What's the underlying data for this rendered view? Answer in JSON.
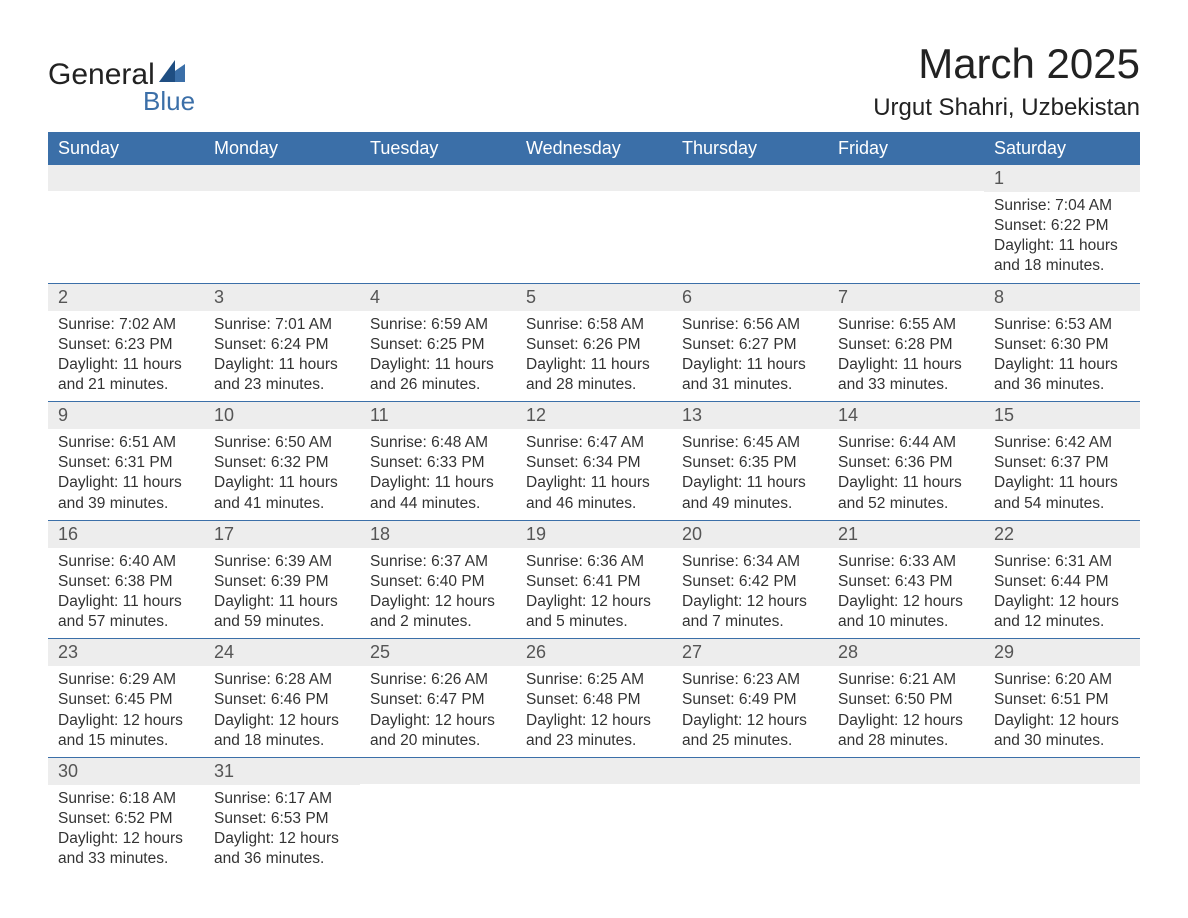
{
  "brand": {
    "name_part1": "General",
    "name_part2": "Blue",
    "accent_color": "#3b6fa8"
  },
  "title": "March 2025",
  "location": "Urgut Shahri, Uzbekistan",
  "weekdays": [
    "Sunday",
    "Monday",
    "Tuesday",
    "Wednesday",
    "Thursday",
    "Friday",
    "Saturday"
  ],
  "colors": {
    "header_bg": "#3b6fa8",
    "header_text": "#ffffff",
    "daynum_bg": "#ededed",
    "border": "#3b6fa8",
    "text": "#333333"
  },
  "weeks": [
    [
      null,
      null,
      null,
      null,
      null,
      null,
      {
        "n": "1",
        "sunrise": "Sunrise: 7:04 AM",
        "sunset": "Sunset: 6:22 PM",
        "day1": "Daylight: 11 hours",
        "day2": "and 18 minutes."
      }
    ],
    [
      {
        "n": "2",
        "sunrise": "Sunrise: 7:02 AM",
        "sunset": "Sunset: 6:23 PM",
        "day1": "Daylight: 11 hours",
        "day2": "and 21 minutes."
      },
      {
        "n": "3",
        "sunrise": "Sunrise: 7:01 AM",
        "sunset": "Sunset: 6:24 PM",
        "day1": "Daylight: 11 hours",
        "day2": "and 23 minutes."
      },
      {
        "n": "4",
        "sunrise": "Sunrise: 6:59 AM",
        "sunset": "Sunset: 6:25 PM",
        "day1": "Daylight: 11 hours",
        "day2": "and 26 minutes."
      },
      {
        "n": "5",
        "sunrise": "Sunrise: 6:58 AM",
        "sunset": "Sunset: 6:26 PM",
        "day1": "Daylight: 11 hours",
        "day2": "and 28 minutes."
      },
      {
        "n": "6",
        "sunrise": "Sunrise: 6:56 AM",
        "sunset": "Sunset: 6:27 PM",
        "day1": "Daylight: 11 hours",
        "day2": "and 31 minutes."
      },
      {
        "n": "7",
        "sunrise": "Sunrise: 6:55 AM",
        "sunset": "Sunset: 6:28 PM",
        "day1": "Daylight: 11 hours",
        "day2": "and 33 minutes."
      },
      {
        "n": "8",
        "sunrise": "Sunrise: 6:53 AM",
        "sunset": "Sunset: 6:30 PM",
        "day1": "Daylight: 11 hours",
        "day2": "and 36 minutes."
      }
    ],
    [
      {
        "n": "9",
        "sunrise": "Sunrise: 6:51 AM",
        "sunset": "Sunset: 6:31 PM",
        "day1": "Daylight: 11 hours",
        "day2": "and 39 minutes."
      },
      {
        "n": "10",
        "sunrise": "Sunrise: 6:50 AM",
        "sunset": "Sunset: 6:32 PM",
        "day1": "Daylight: 11 hours",
        "day2": "and 41 minutes."
      },
      {
        "n": "11",
        "sunrise": "Sunrise: 6:48 AM",
        "sunset": "Sunset: 6:33 PM",
        "day1": "Daylight: 11 hours",
        "day2": "and 44 minutes."
      },
      {
        "n": "12",
        "sunrise": "Sunrise: 6:47 AM",
        "sunset": "Sunset: 6:34 PM",
        "day1": "Daylight: 11 hours",
        "day2": "and 46 minutes."
      },
      {
        "n": "13",
        "sunrise": "Sunrise: 6:45 AM",
        "sunset": "Sunset: 6:35 PM",
        "day1": "Daylight: 11 hours",
        "day2": "and 49 minutes."
      },
      {
        "n": "14",
        "sunrise": "Sunrise: 6:44 AM",
        "sunset": "Sunset: 6:36 PM",
        "day1": "Daylight: 11 hours",
        "day2": "and 52 minutes."
      },
      {
        "n": "15",
        "sunrise": "Sunrise: 6:42 AM",
        "sunset": "Sunset: 6:37 PM",
        "day1": "Daylight: 11 hours",
        "day2": "and 54 minutes."
      }
    ],
    [
      {
        "n": "16",
        "sunrise": "Sunrise: 6:40 AM",
        "sunset": "Sunset: 6:38 PM",
        "day1": "Daylight: 11 hours",
        "day2": "and 57 minutes."
      },
      {
        "n": "17",
        "sunrise": "Sunrise: 6:39 AM",
        "sunset": "Sunset: 6:39 PM",
        "day1": "Daylight: 11 hours",
        "day2": "and 59 minutes."
      },
      {
        "n": "18",
        "sunrise": "Sunrise: 6:37 AM",
        "sunset": "Sunset: 6:40 PM",
        "day1": "Daylight: 12 hours",
        "day2": "and 2 minutes."
      },
      {
        "n": "19",
        "sunrise": "Sunrise: 6:36 AM",
        "sunset": "Sunset: 6:41 PM",
        "day1": "Daylight: 12 hours",
        "day2": "and 5 minutes."
      },
      {
        "n": "20",
        "sunrise": "Sunrise: 6:34 AM",
        "sunset": "Sunset: 6:42 PM",
        "day1": "Daylight: 12 hours",
        "day2": "and 7 minutes."
      },
      {
        "n": "21",
        "sunrise": "Sunrise: 6:33 AM",
        "sunset": "Sunset: 6:43 PM",
        "day1": "Daylight: 12 hours",
        "day2": "and 10 minutes."
      },
      {
        "n": "22",
        "sunrise": "Sunrise: 6:31 AM",
        "sunset": "Sunset: 6:44 PM",
        "day1": "Daylight: 12 hours",
        "day2": "and 12 minutes."
      }
    ],
    [
      {
        "n": "23",
        "sunrise": "Sunrise: 6:29 AM",
        "sunset": "Sunset: 6:45 PM",
        "day1": "Daylight: 12 hours",
        "day2": "and 15 minutes."
      },
      {
        "n": "24",
        "sunrise": "Sunrise: 6:28 AM",
        "sunset": "Sunset: 6:46 PM",
        "day1": "Daylight: 12 hours",
        "day2": "and 18 minutes."
      },
      {
        "n": "25",
        "sunrise": "Sunrise: 6:26 AM",
        "sunset": "Sunset: 6:47 PM",
        "day1": "Daylight: 12 hours",
        "day2": "and 20 minutes."
      },
      {
        "n": "26",
        "sunrise": "Sunrise: 6:25 AM",
        "sunset": "Sunset: 6:48 PM",
        "day1": "Daylight: 12 hours",
        "day2": "and 23 minutes."
      },
      {
        "n": "27",
        "sunrise": "Sunrise: 6:23 AM",
        "sunset": "Sunset: 6:49 PM",
        "day1": "Daylight: 12 hours",
        "day2": "and 25 minutes."
      },
      {
        "n": "28",
        "sunrise": "Sunrise: 6:21 AM",
        "sunset": "Sunset: 6:50 PM",
        "day1": "Daylight: 12 hours",
        "day2": "and 28 minutes."
      },
      {
        "n": "29",
        "sunrise": "Sunrise: 6:20 AM",
        "sunset": "Sunset: 6:51 PM",
        "day1": "Daylight: 12 hours",
        "day2": "and 30 minutes."
      }
    ],
    [
      {
        "n": "30",
        "sunrise": "Sunrise: 6:18 AM",
        "sunset": "Sunset: 6:52 PM",
        "day1": "Daylight: 12 hours",
        "day2": "and 33 minutes."
      },
      {
        "n": "31",
        "sunrise": "Sunrise: 6:17 AM",
        "sunset": "Sunset: 6:53 PM",
        "day1": "Daylight: 12 hours",
        "day2": "and 36 minutes."
      },
      null,
      null,
      null,
      null,
      null
    ]
  ]
}
